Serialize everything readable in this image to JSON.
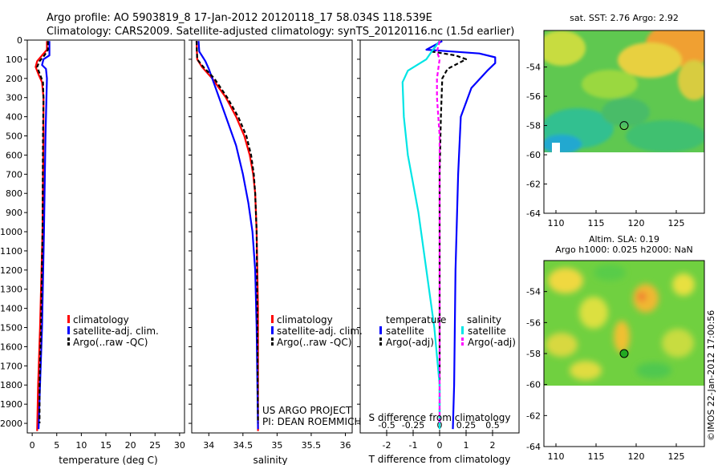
{
  "title": {
    "line1": "Argo profile: AO 5903819_8 17-Jan-2012 20120118_17 58.034S 118.539E",
    "line2": "Climatology: CARS2009. Satellite-adjusted climatology: synTS_20120116.nc (1.5d earlier)"
  },
  "colors": {
    "climatology": "#ff0000",
    "satellite": "#0000ff",
    "argo": "#000000",
    "cyan": "#00e5e5",
    "magenta": "#ff00ff"
  },
  "chart_data": [
    {
      "id": "temperature",
      "type": "line",
      "xlabel": "temperature (deg C)",
      "xlim": [
        -1,
        31
      ],
      "xticks": [
        0,
        5,
        10,
        15,
        20,
        25,
        30
      ],
      "xticklabels": [
        "0",
        "5",
        "10",
        "15",
        "20",
        "25",
        "30"
      ],
      "ylim": [
        0,
        2050
      ],
      "yticks": [
        0,
        100,
        200,
        300,
        400,
        500,
        600,
        700,
        800,
        900,
        1000,
        1100,
        1200,
        1300,
        1400,
        1500,
        1600,
        1700,
        1800,
        1900,
        2000
      ],
      "yticklabels": [
        "0",
        "100",
        "200",
        "300",
        "400",
        "500",
        "600",
        "700",
        "800",
        "900",
        "1000",
        "1100",
        "1200",
        "1300",
        "1400",
        "1500",
        "1600",
        "1700",
        "1800",
        "1900",
        "2000"
      ],
      "legend": [
        "climatology",
        "satellite-adj. clim.",
        "Argo(..raw -QC)"
      ],
      "series": [
        {
          "name": "climatology",
          "color": "#ff0000",
          "dash": "",
          "points": [
            [
              3.0,
              5
            ],
            [
              3.0,
              50
            ],
            [
              2.0,
              80
            ],
            [
              1.0,
              110
            ],
            [
              0.7,
              140
            ],
            [
              1.3,
              180
            ],
            [
              2.0,
              220
            ],
            [
              2.3,
              300
            ],
            [
              2.3,
              500
            ],
            [
              2.1,
              1000
            ],
            [
              1.6,
              1500
            ],
            [
              1.2,
              1800
            ],
            [
              1.0,
              2040
            ]
          ]
        },
        {
          "name": "satellite-adj. clim.",
          "color": "#0000ff",
          "dash": "",
          "points": [
            [
              3.5,
              5
            ],
            [
              3.5,
              50
            ],
            [
              3.5,
              80
            ],
            [
              2.3,
              100
            ],
            [
              2.0,
              130
            ],
            [
              2.8,
              150
            ],
            [
              3.0,
              200
            ],
            [
              2.9,
              300
            ],
            [
              2.7,
              500
            ],
            [
              2.4,
              1000
            ],
            [
              2.0,
              1500
            ],
            [
              1.6,
              1800
            ],
            [
              1.3,
              2030
            ]
          ]
        },
        {
          "name": "Argo(..raw -QC)",
          "color": "#000000",
          "dash": "5,3",
          "points": [
            [
              3.2,
              5
            ],
            [
              3.2,
              50
            ],
            [
              2.5,
              80
            ],
            [
              1.5,
              110
            ],
            [
              1.0,
              140
            ],
            [
              1.6,
              180
            ],
            [
              2.2,
              220
            ],
            [
              2.3,
              300
            ],
            [
              2.2,
              500
            ],
            [
              2.1,
              1000
            ],
            [
              1.8,
              1500
            ],
            [
              1.5,
              1800
            ],
            [
              1.5,
              2000
            ]
          ]
        }
      ]
    },
    {
      "id": "salinity",
      "type": "line",
      "xlabel": "salinity",
      "xlim": [
        33.75,
        36.1
      ],
      "xticks": [
        34,
        34.5,
        35,
        35.5,
        36
      ],
      "xticklabels": [
        "34",
        "34.5",
        "35",
        "35.5",
        "36"
      ],
      "ylim": [
        0,
        2050
      ],
      "yticks": [
        0,
        100,
        200,
        300,
        400,
        500,
        600,
        700,
        800,
        900,
        1000,
        1100,
        1200,
        1300,
        1400,
        1500,
        1600,
        1700,
        1800,
        1900,
        2000
      ],
      "legend": [
        "climatology",
        "satellite-adj. clim.",
        "Argo(..raw -QC)"
      ],
      "note_line1": "US ARGO PROJECT",
      "note_line2": "PI: DEAN ROEMMICH",
      "series": [
        {
          "name": "climatology",
          "color": "#ff0000",
          "dash": "",
          "points": [
            [
              33.82,
              5
            ],
            [
              33.83,
              100
            ],
            [
              33.9,
              140
            ],
            [
              34.05,
              200
            ],
            [
              34.25,
              300
            ],
            [
              34.4,
              400
            ],
            [
              34.52,
              500
            ],
            [
              34.6,
              600
            ],
            [
              34.65,
              700
            ],
            [
              34.68,
              800
            ],
            [
              34.7,
              1000
            ],
            [
              34.72,
              1400
            ],
            [
              34.72,
              2040
            ]
          ]
        },
        {
          "name": "satellite-adj. clim.",
          "color": "#0000ff",
          "dash": "",
          "points": [
            [
              33.85,
              5
            ],
            [
              33.86,
              60
            ],
            [
              33.95,
              110
            ],
            [
              34.0,
              150
            ],
            [
              34.1,
              250
            ],
            [
              34.25,
              400
            ],
            [
              34.4,
              550
            ],
            [
              34.5,
              700
            ],
            [
              34.58,
              850
            ],
            [
              34.64,
              1000
            ],
            [
              34.68,
              1200
            ],
            [
              34.7,
              1500
            ],
            [
              34.72,
              2030
            ]
          ]
        },
        {
          "name": "Argo(..raw -QC)",
          "color": "#000000",
          "dash": "5,3",
          "points": [
            [
              33.82,
              5
            ],
            [
              33.83,
              100
            ],
            [
              33.92,
              140
            ],
            [
              34.08,
              200
            ],
            [
              34.27,
              300
            ],
            [
              34.43,
              400
            ],
            [
              34.55,
              500
            ],
            [
              34.62,
              600
            ],
            [
              34.66,
              700
            ],
            [
              34.68,
              800
            ],
            [
              34.7,
              1000
            ],
            [
              34.71,
              1400
            ],
            [
              34.72,
              2000
            ]
          ]
        }
      ]
    },
    {
      "id": "difference",
      "type": "line",
      "xlabel_top": "S difference from climatology",
      "xlabel_bottom": "T difference from climatology",
      "xlim": [
        -3,
        3
      ],
      "xticks_bottom": [
        -2,
        -1,
        0,
        1,
        2
      ],
      "xticklabels_bottom": [
        "-2",
        "-1",
        "0",
        "1",
        "2"
      ],
      "xticks_top": [
        -0.5,
        -0.25,
        0,
        0.25,
        0.5
      ],
      "xticklabels_top": [
        "-0.5",
        "-0.25",
        "0",
        "0.25",
        "0.5"
      ],
      "ylim": [
        0,
        2050
      ],
      "yticks": [
        0,
        100,
        200,
        300,
        400,
        500,
        600,
        700,
        800,
        900,
        1000,
        1100,
        1200,
        1300,
        1400,
        1500,
        1600,
        1700,
        1800,
        1900,
        2000
      ],
      "legend_temperature_title": "temperature",
      "legend_salinity_title": "salinity",
      "legend": [
        "satellite",
        "Argo(-adj)",
        "satellite",
        "Argo(-adj)"
      ],
      "series": [
        {
          "name": "temperature satellite",
          "color": "#0000ff",
          "dash": "",
          "points": [
            [
              0.1,
              5
            ],
            [
              -0.5,
              50
            ],
            [
              0.5,
              60
            ],
            [
              1.5,
              70
            ],
            [
              2.1,
              90
            ],
            [
              2.1,
              120
            ],
            [
              1.8,
              160
            ],
            [
              1.2,
              250
            ],
            [
              0.8,
              400
            ],
            [
              0.7,
              700
            ],
            [
              0.6,
              1200
            ],
            [
              0.55,
              1800
            ],
            [
              0.5,
              2030
            ]
          ]
        },
        {
          "name": "temperature Argo(-adj)",
          "color": "#000000",
          "dash": "5,3",
          "points": [
            [
              0,
              5
            ],
            [
              -0.3,
              60
            ],
            [
              0.6,
              80
            ],
            [
              1.0,
              100
            ],
            [
              0.3,
              150
            ],
            [
              0.1,
              200
            ],
            [
              0.05,
              400
            ],
            [
              0,
              700
            ],
            [
              0,
              1200
            ],
            [
              0,
              1800
            ],
            [
              0,
              2000
            ]
          ]
        },
        {
          "name": "salinity satellite",
          "color": "#00e5e5",
          "dash": "",
          "points": [
            [
              0,
              5
            ],
            [
              -0.3,
              60
            ],
            [
              -0.5,
              100
            ],
            [
              -1.2,
              160
            ],
            [
              -1.4,
              220
            ],
            [
              -1.35,
              400
            ],
            [
              -1.2,
              600
            ],
            [
              -0.8,
              900
            ],
            [
              -0.5,
              1200
            ],
            [
              -0.2,
              1500
            ],
            [
              0,
              1800
            ],
            [
              0,
              2030
            ]
          ]
        },
        {
          "name": "salinity Argo(-adj)",
          "color": "#ff00ff",
          "dash": "5,3",
          "points": [
            [
              0,
              5
            ],
            [
              -0.1,
              60
            ],
            [
              0,
              100
            ],
            [
              -0.1,
              200
            ],
            [
              -0.1,
              300
            ],
            [
              0,
              500
            ],
            [
              0,
              1000
            ],
            [
              0,
              1500
            ],
            [
              0,
              2000
            ]
          ]
        }
      ]
    }
  ],
  "maps": [
    {
      "id": "sst",
      "title": "sat. SST: 2.76 Argo: 2.92",
      "xticks": [
        110,
        115,
        120,
        125
      ],
      "yticks": [
        -54,
        -56,
        -58,
        -60,
        -62,
        -64
      ],
      "xlim": [
        108.5,
        128.5
      ],
      "ylim": [
        -64,
        -51.5
      ],
      "data_lat_min": -60,
      "argo_lon": 118.5,
      "argo_lat": -58.0
    },
    {
      "id": "sla",
      "title_line1": "Altim. SLA: 0.19",
      "title_line2": "Argo h1000: 0.025 h2000: NaN",
      "xticks": [
        110,
        115,
        120,
        125
      ],
      "yticks": [
        -54,
        -56,
        -58,
        -60,
        -62,
        -64
      ],
      "xlim": [
        108.5,
        128.5
      ],
      "ylim": [
        -64,
        -52
      ],
      "data_lat_min": -60,
      "argo_lon": 118.5,
      "argo_lat": -58.0
    }
  ],
  "credit": "©IMOS 22-Jan-2012 17:00:56"
}
